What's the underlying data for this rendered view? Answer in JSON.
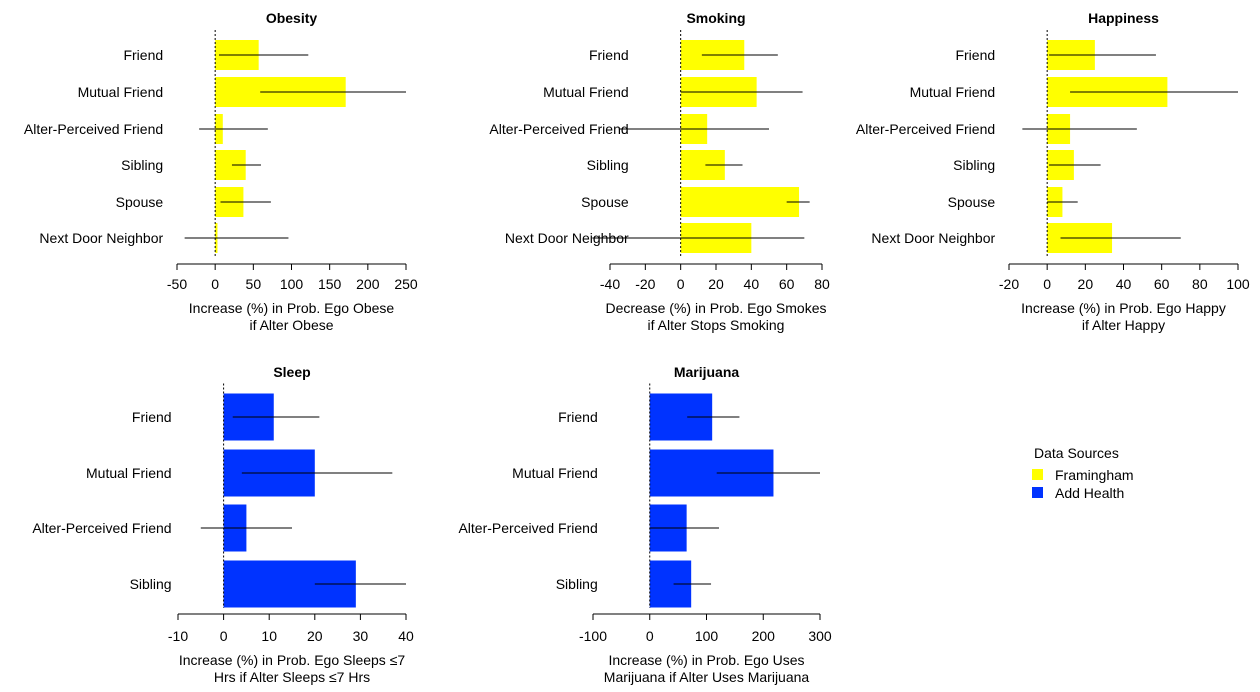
{
  "legend": {
    "title": "Data Sources",
    "items": [
      {
        "label": "Framingham",
        "color": "#ffff00"
      },
      {
        "label": "Add Health",
        "color": "#0033ff"
      }
    ]
  },
  "chart_data": [
    {
      "type": "bar",
      "orientation": "horizontal",
      "title": "Obesity",
      "xlabel": [
        "Increase (%) in Prob. Ego Obese",
        "if Alter Obese"
      ],
      "xlim": [
        -50,
        250
      ],
      "ticks": [
        -50,
        0,
        50,
        100,
        150,
        200,
        250
      ],
      "color": "#ffff00",
      "categories": [
        "Friend",
        "Mutual Friend",
        "Alter-Perceived Friend",
        "Sibling",
        "Spouse",
        "Next Door Neighbor"
      ],
      "values": [
        57,
        171,
        10,
        40,
        37,
        3
      ],
      "ci_low": [
        5,
        59,
        -21,
        22,
        7,
        -40
      ],
      "ci_high": [
        122,
        250,
        69,
        60,
        73,
        96
      ]
    },
    {
      "type": "bar",
      "orientation": "horizontal",
      "title": "Smoking",
      "xlabel": [
        "Decrease (%) in Prob. Ego Smokes",
        "if Alter Stops Smoking"
      ],
      "xlim": [
        -40,
        80
      ],
      "ticks": [
        -40,
        -20,
        0,
        20,
        40,
        60,
        80
      ],
      "color": "#ffff00",
      "categories": [
        "Friend",
        "Mutual Friend",
        "Alter-Perceived Friend",
        "Sibling",
        "Spouse",
        "Next Door Neighbor"
      ],
      "values": [
        36,
        43,
        15,
        25,
        67,
        40
      ],
      "ci_low": [
        12,
        0,
        -35,
        14,
        60,
        -50
      ],
      "ci_high": [
        55,
        69,
        50,
        35,
        73,
        70
      ]
    },
    {
      "type": "bar",
      "orientation": "horizontal",
      "title": "Happiness",
      "xlabel": [
        "Increase (%) in Prob. Ego Happy",
        "if Alter Happy"
      ],
      "xlim": [
        -20,
        100
      ],
      "ticks": [
        -20,
        0,
        20,
        40,
        60,
        80,
        100
      ],
      "color": "#ffff00",
      "categories": [
        "Friend",
        "Mutual Friend",
        "Alter-Perceived Friend",
        "Sibling",
        "Spouse",
        "Next Door Neighbor"
      ],
      "values": [
        25,
        63,
        12,
        14,
        8,
        34
      ],
      "ci_low": [
        1,
        12,
        -13,
        1,
        0,
        7
      ],
      "ci_high": [
        57,
        100,
        47,
        28,
        16,
        70
      ]
    },
    {
      "type": "bar",
      "orientation": "horizontal",
      "title": "Sleep",
      "xlabel": [
        "Increase (%) in Prob. Ego Sleeps ≤7",
        "Hrs if Alter Sleeps ≤7 Hrs"
      ],
      "xlim": [
        -10,
        40
      ],
      "ticks": [
        -10,
        0,
        10,
        20,
        30,
        40
      ],
      "color": "#0033ff",
      "categories": [
        "Friend",
        "Mutual Friend",
        "Alter-Perceived Friend",
        "Sibling"
      ],
      "values": [
        11,
        20,
        5,
        29
      ],
      "ci_low": [
        2,
        4,
        -5,
        20
      ],
      "ci_high": [
        21,
        37,
        15,
        40
      ]
    },
    {
      "type": "bar",
      "orientation": "horizontal",
      "title": "Marijuana",
      "xlabel": [
        "Increase (%) in Prob. Ego Uses",
        "Marijuana if Alter Uses Marijuana"
      ],
      "xlim": [
        -100,
        300
      ],
      "ticks": [
        -100,
        0,
        100,
        200,
        300
      ],
      "color": "#0033ff",
      "categories": [
        "Friend",
        "Mutual Friend",
        "Alter-Perceived Friend",
        "Sibling"
      ],
      "values": [
        110,
        218,
        65,
        73
      ],
      "ci_low": [
        66,
        118,
        0,
        42
      ],
      "ci_high": [
        158,
        300,
        122,
        108
      ]
    }
  ]
}
